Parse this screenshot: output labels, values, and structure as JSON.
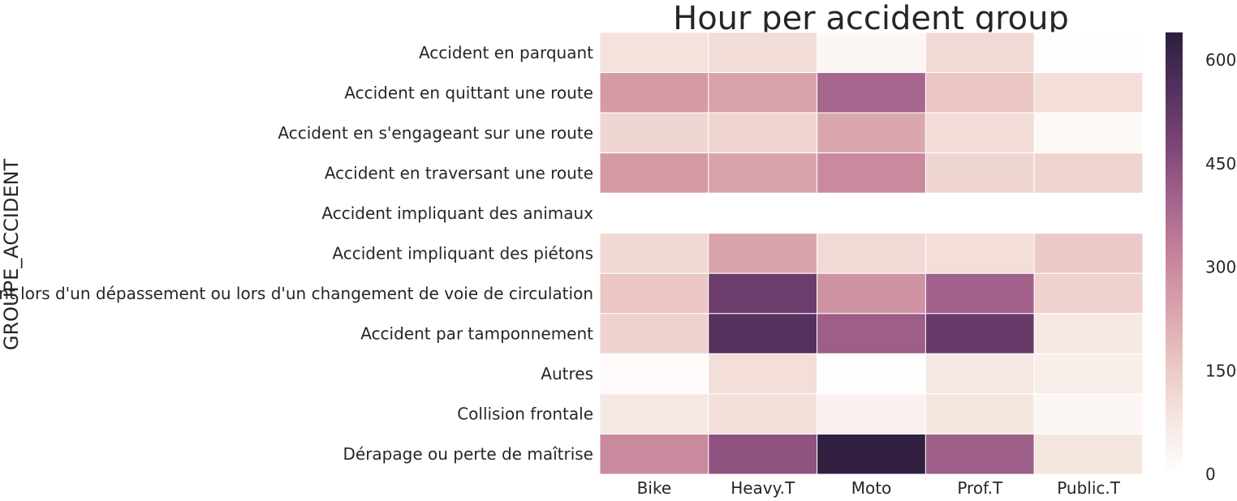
{
  "chart_data": {
    "type": "heatmap",
    "title": "Hour per accident group",
    "ylabel": "GROUPE_ACCIDENT",
    "xlabel": "",
    "columns": [
      "Bike",
      "Heavy.T",
      "Moto",
      "Prof.T",
      "Public.T"
    ],
    "rows": [
      "Accident en parquant",
      "Accident en quittant une route",
      "Accident en s'engageant sur une route",
      "Accident en traversant une route",
      "Accident impliquant des animaux",
      "Accident impliquant des piétons",
      "Accident lors d'un dépassement ou lors d'un changement de voie de circulation",
      "Accident par tamponnement",
      "Autres",
      "Collision frontale",
      "Dérapage ou perte de maîtrise"
    ],
    "values": [
      [
        90,
        105,
        25,
        110,
        5
      ],
      [
        260,
        240,
        390,
        160,
        100
      ],
      [
        120,
        125,
        230,
        105,
        20
      ],
      [
        260,
        240,
        300,
        120,
        125
      ],
      [
        null,
        null,
        null,
        null,
        null
      ],
      [
        115,
        240,
        110,
        100,
        150
      ],
      [
        160,
        510,
        280,
        400,
        130
      ],
      [
        130,
        555,
        410,
        520,
        70
      ],
      [
        15,
        100,
        5,
        75,
        55
      ],
      [
        75,
        95,
        45,
        80,
        25
      ],
      [
        300,
        440,
        630,
        410,
        80
      ]
    ],
    "colorbar": {
      "min": 0,
      "max": 640,
      "ticks": [
        0,
        150,
        300,
        450,
        600
      ],
      "colors": [
        "#ffffff",
        "#f5e6e0",
        "#ebc6c3",
        "#d9a3ab",
        "#c4829a",
        "#a2628b",
        "#7b4475",
        "#52305e",
        "#2d1e3e"
      ]
    },
    "grid": false,
    "legend": "right"
  }
}
